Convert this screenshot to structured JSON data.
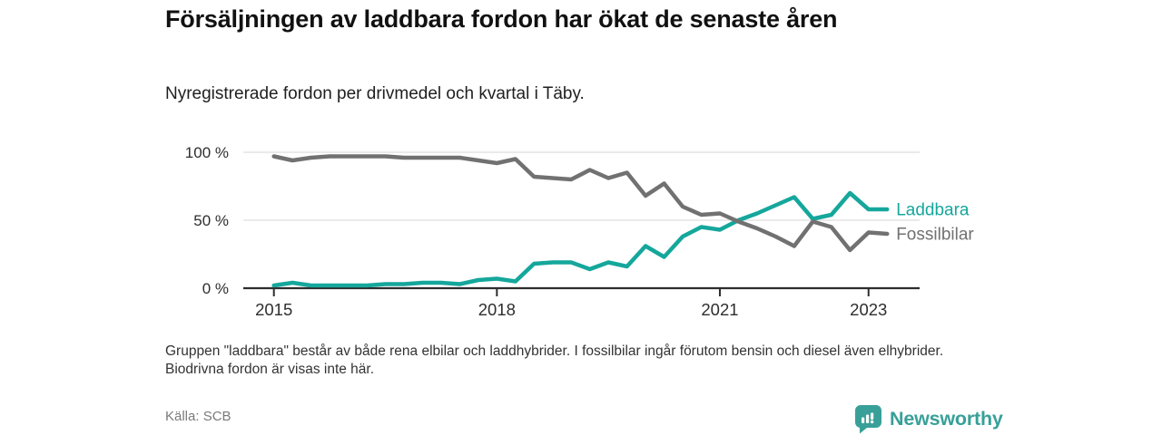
{
  "header": {
    "title": "Försäljningen av laddbara fordon har ökat de senaste åren",
    "subtitle": "Nyregistrerade fordon per drivmedel och kvartal i Täby."
  },
  "chart_data": {
    "type": "line",
    "title": "Nyregistrerade fordon per drivmedel och kvartal i Täby",
    "x_unit": "kvartal",
    "y_unit": "%",
    "ylim": [
      0,
      100
    ],
    "grid": "horizontal",
    "legend_position": "right-of-line-end",
    "categories": [
      "2015 K1",
      "2015 K2",
      "2015 K3",
      "2015 K4",
      "2016 K1",
      "2016 K2",
      "2016 K3",
      "2016 K4",
      "2017 K1",
      "2017 K2",
      "2017 K3",
      "2017 K4",
      "2018 K1",
      "2018 K2",
      "2018 K3",
      "2018 K4",
      "2019 K1",
      "2019 K2",
      "2019 K3",
      "2019 K4",
      "2020 K1",
      "2020 K2",
      "2020 K3",
      "2020 K4",
      "2021 K1",
      "2021 K2",
      "2021 K3",
      "2021 K4",
      "2022 K1",
      "2022 K2",
      "2022 K3",
      "2022 K4",
      "2023 K1",
      "2023 K2"
    ],
    "series": [
      {
        "name": "Laddbara",
        "color": "#15a79c",
        "values": [
          2,
          4,
          2,
          2,
          2,
          2,
          3,
          3,
          4,
          4,
          3,
          6,
          7,
          5,
          18,
          19,
          19,
          14,
          19,
          16,
          31,
          23,
          38,
          45,
          43,
          50,
          55,
          61,
          67,
          51,
          54,
          70,
          58,
          58
        ]
      },
      {
        "name": "Fossilbilar",
        "color": "#717171",
        "values": [
          97,
          94,
          96,
          97,
          97,
          97,
          97,
          96,
          96,
          96,
          96,
          94,
          92,
          95,
          82,
          81,
          80,
          87,
          81,
          85,
          68,
          77,
          60,
          54,
          55,
          49,
          44,
          38,
          31,
          49,
          45,
          28,
          41,
          40
        ]
      }
    ],
    "y_ticks": [
      {
        "value": 0,
        "label": "0 %"
      },
      {
        "value": 50,
        "label": "50 %"
      },
      {
        "value": 100,
        "label": "100 %"
      }
    ],
    "x_ticks": [
      {
        "index": 0,
        "label": "2015"
      },
      {
        "index": 12,
        "label": "2018"
      },
      {
        "index": 24,
        "label": "2021"
      },
      {
        "index": 32,
        "label": "2023"
      }
    ]
  },
  "footer": {
    "note": "Gruppen \"laddbara\" består av både rena elbilar och laddhybrider. I fossilbilar ingår förutom bensin och diesel även elhybrider. Biodrivna fordon är visas inte här.",
    "source": "Källa: SCB",
    "brand": "Newsworthy"
  },
  "colors": {
    "laddbara": "#15a79c",
    "fossilbilar": "#717171",
    "axis": "#2d2d2d",
    "gridline": "#dedede",
    "tick_label": "#2e2e2e",
    "brand_teal": "#38a098"
  }
}
